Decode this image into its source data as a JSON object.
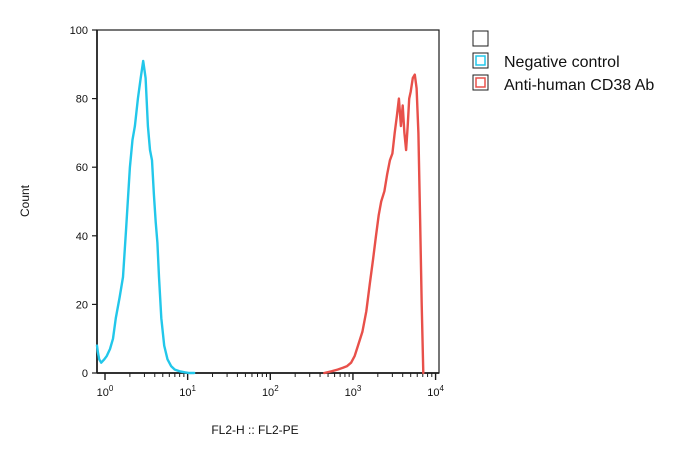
{
  "chart_data": {
    "type": "line",
    "title": "",
    "xlabel": "FL2-H :: FL2-PE",
    "ylabel": "Count",
    "x_scale": "log",
    "xlim": [
      0.8,
      11000
    ],
    "ylim": [
      0,
      100
    ],
    "x_ticks": [
      1,
      10,
      100,
      1000,
      10000
    ],
    "y_ticks": [
      0,
      20,
      40,
      60,
      80,
      100
    ],
    "grid": false,
    "legend_position": "right",
    "series": [
      {
        "name": "Negative control",
        "color": "#22c7ea",
        "x": [
          0.8,
          0.82,
          0.85,
          0.9,
          0.98,
          1.05,
          1.15,
          1.25,
          1.35,
          1.5,
          1.65,
          1.8,
          2.0,
          2.15,
          2.3,
          2.5,
          2.7,
          2.9,
          3.1,
          3.3,
          3.5,
          3.7,
          3.9,
          4.1,
          4.3,
          4.5,
          4.8,
          5.2,
          5.7,
          6.3,
          7.0,
          8.0,
          9.2,
          10.5,
          12.0
        ],
        "y": [
          8,
          6,
          4,
          3,
          4,
          5,
          7,
          10,
          16,
          22,
          28,
          42,
          60,
          68,
          72,
          80,
          86,
          91,
          86,
          72,
          65,
          62,
          52,
          44,
          38,
          28,
          16,
          8,
          4,
          2,
          1,
          0.5,
          0.2,
          0,
          0
        ]
      },
      {
        "name": "Anti-human CD38 Ab",
        "color": "#e8504a",
        "x": [
          450,
          550,
          650,
          750,
          850,
          950,
          1050,
          1150,
          1300,
          1450,
          1600,
          1750,
          1900,
          2050,
          2200,
          2400,
          2600,
          2800,
          3000,
          3200,
          3400,
          3600,
          3800,
          4000,
          4200,
          4400,
          4600,
          4800,
          5000,
          5300,
          5600,
          5900,
          6200,
          6500,
          6800,
          7100
        ],
        "y": [
          0,
          0.5,
          1,
          1.5,
          2,
          3,
          5,
          8,
          12,
          18,
          26,
          33,
          40,
          46,
          50,
          53,
          58,
          62,
          64,
          70,
          75,
          80,
          72,
          78,
          70,
          65,
          72,
          80,
          82,
          86,
          87,
          83,
          70,
          45,
          20,
          0
        ]
      }
    ]
  }
}
